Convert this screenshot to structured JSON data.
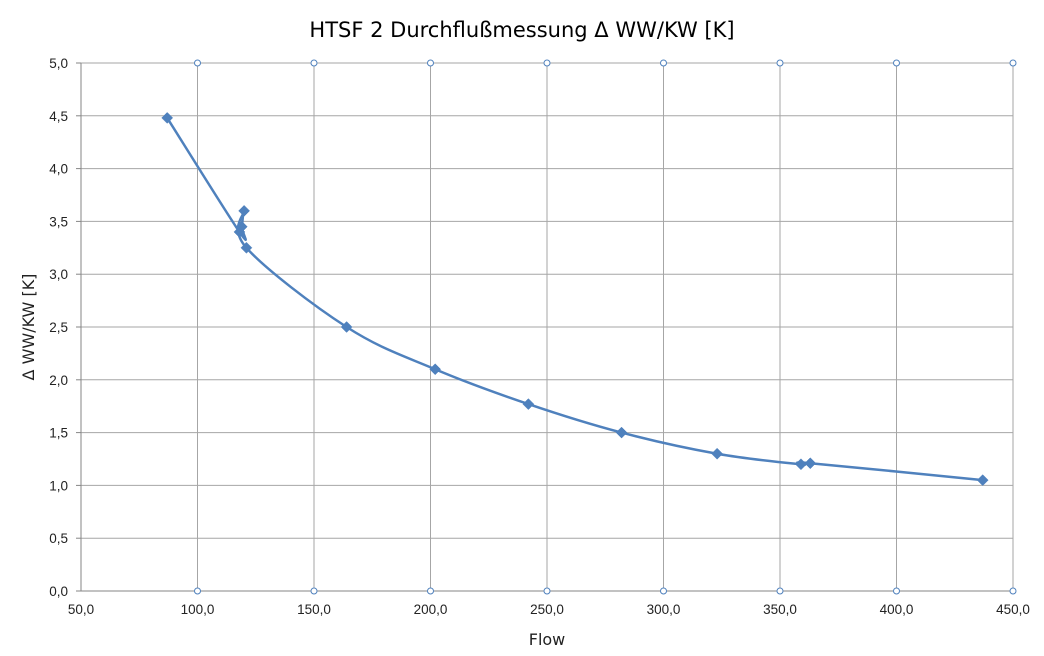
{
  "chart_data": {
    "type": "scatter",
    "title": "HTSF 2 Durchflußmessung Δ WW/KW [K]",
    "xlabel": "Flow",
    "ylabel": "Δ WW/KW [K]",
    "xlim": [
      50,
      450
    ],
    "ylim": [
      0,
      5
    ],
    "x_ticks": [
      "50,0",
      "100,0",
      "150,0",
      "200,0",
      "250,0",
      "300,0",
      "350,0",
      "400,0",
      "450,0"
    ],
    "y_ticks": [
      "0,0",
      "0,5",
      "1,0",
      "1,5",
      "2,0",
      "2,5",
      "3,0",
      "3,5",
      "4,0",
      "4,5",
      "5,0"
    ],
    "grid": true,
    "legend": "none",
    "line_style": "smoothed line with diamond markers",
    "color": "#4f81bd",
    "series": [
      {
        "x": [
          87,
          118,
          119,
          120,
          121,
          164,
          202,
          242,
          282,
          323,
          359,
          363,
          437
        ],
        "y": [
          4.48,
          3.4,
          3.45,
          3.6,
          3.25,
          2.5,
          2.1,
          1.77,
          1.5,
          1.3,
          1.2,
          1.21,
          1.05
        ]
      }
    ]
  }
}
